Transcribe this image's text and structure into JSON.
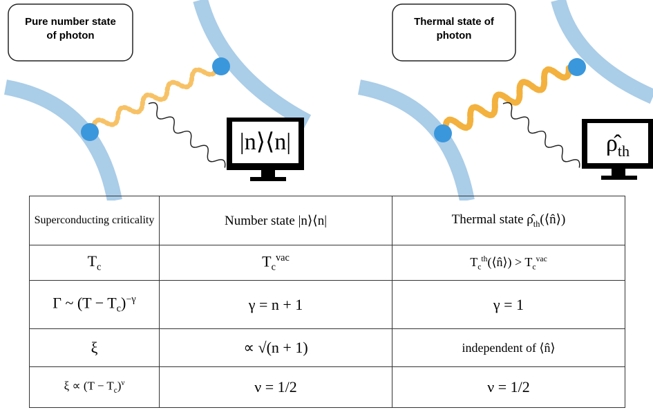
{
  "panels": [
    {
      "label": "Pure number state of photon",
      "monitor": [
        "|n⟩⟨n|"
      ]
    },
    {
      "label": "Thermal state of photon",
      "monitor": [
        "ρ̂",
        {
          "sub": "th"
        }
      ]
    }
  ],
  "table": {
    "rows": [
      [
        [
          "Superconducting criticality"
        ],
        [
          "Number state |n⟩⟨n|"
        ],
        [
          "Thermal state ρ̂",
          {
            "sub": "th"
          },
          "(⟨n̂⟩)"
        ]
      ],
      [
        [
          "T",
          {
            "sub": "c"
          }
        ],
        [
          "T",
          {
            "sub": "c"
          },
          {
            "sup": "vac"
          }
        ],
        [
          "T",
          {
            "sub": "c"
          },
          {
            "sup": "th"
          },
          "(⟨n̂⟩) > T",
          {
            "sub": "c"
          },
          {
            "sup": "vac"
          }
        ]
      ],
      [
        [
          "Γ ~ (T − T",
          {
            "sub": "c"
          },
          ")",
          {
            "sup": "−γ"
          }
        ],
        [
          "γ = n + 1"
        ],
        [
          "γ = 1"
        ]
      ],
      [
        [
          "ξ"
        ],
        [
          "∝ √(n + 1)"
        ],
        [
          "independent of ⟨n̂⟩"
        ]
      ],
      [
        [
          "ξ ∝ (T − T",
          {
            "sub": "c"
          },
          ")",
          {
            "sup": "ν"
          }
        ],
        [
          "ν = 1/2"
        ],
        [
          "ν = 1/2"
        ]
      ]
    ]
  }
}
